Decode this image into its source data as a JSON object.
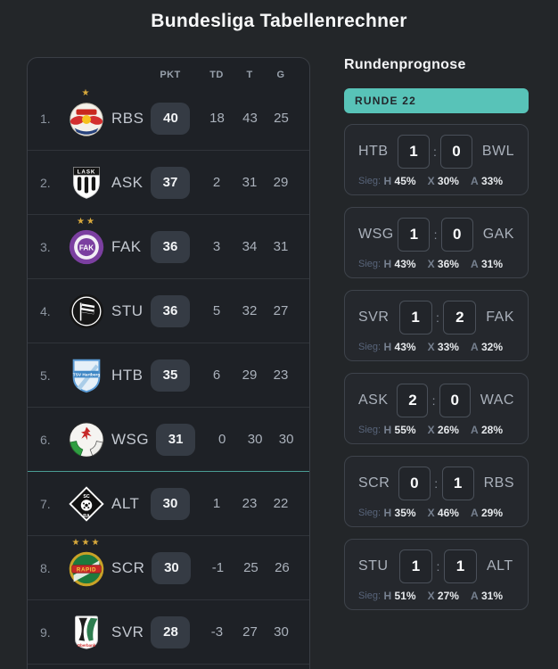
{
  "title": "Bundesliga Tabellenrechner",
  "colors": {
    "page_bg": "#232629",
    "panel_bg": "#1e2126",
    "card_bg": "#25282d",
    "accent_teal": "#58c3b8",
    "badge_bg": "#353b44",
    "star_gold": "#d8a93c"
  },
  "table": {
    "headers": [
      "PKT",
      "TD",
      "T",
      "G"
    ],
    "rows": [
      {
        "pos": "1.",
        "team": "RBS",
        "pkt": "40",
        "td": "18",
        "t": "43",
        "g": "25",
        "logo": "red-bull-salzburg-logo",
        "stars": 1,
        "divider_after": "normal"
      },
      {
        "pos": "2.",
        "team": "ASK",
        "pkt": "37",
        "td": "2",
        "t": "31",
        "g": "29",
        "logo": "lask-logo",
        "stars": 0,
        "divider_after": "normal"
      },
      {
        "pos": "3.",
        "team": "FAK",
        "pkt": "36",
        "td": "3",
        "t": "34",
        "g": "31",
        "logo": "austria-wien-logo",
        "stars": 2,
        "divider_after": "normal"
      },
      {
        "pos": "4.",
        "team": "STU",
        "pkt": "36",
        "td": "5",
        "t": "32",
        "g": "27",
        "logo": "sturm-graz-logo",
        "stars": 0,
        "divider_after": "normal"
      },
      {
        "pos": "5.",
        "team": "HTB",
        "pkt": "35",
        "td": "6",
        "t": "29",
        "g": "23",
        "logo": "hartberg-logo",
        "stars": 0,
        "divider_after": "normal"
      },
      {
        "pos": "6.",
        "team": "WSG",
        "pkt": "31",
        "td": "0",
        "t": "30",
        "g": "30",
        "logo": "wsg-tirol-logo",
        "stars": 0,
        "divider_after": "accent"
      },
      {
        "pos": "7.",
        "team": "ALT",
        "pkt": "30",
        "td": "1",
        "t": "23",
        "g": "22",
        "logo": "altach-logo",
        "stars": 0,
        "divider_after": "normal"
      },
      {
        "pos": "8.",
        "team": "SCR",
        "pkt": "30",
        "td": "-1",
        "t": "25",
        "g": "26",
        "logo": "rapid-wien-logo",
        "stars": 3,
        "divider_after": "normal"
      },
      {
        "pos": "9.",
        "team": "SVR",
        "pkt": "28",
        "td": "-3",
        "t": "27",
        "g": "30",
        "logo": "sv-ried-logo",
        "stars": 0,
        "divider_after": "normal"
      }
    ]
  },
  "prognose": {
    "heading": "Rundenprognose",
    "round_label": "RUNDE 22",
    "sieg_label": "Sieg:",
    "matches": [
      {
        "home": "HTB",
        "away": "BWL",
        "home_score": "1",
        "away_score": "0",
        "probs": [
          {
            "k": "H",
            "v": "45%"
          },
          {
            "k": "X",
            "v": "30%"
          },
          {
            "k": "A",
            "v": "33%"
          }
        ]
      },
      {
        "home": "WSG",
        "away": "GAK",
        "home_score": "1",
        "away_score": "0",
        "probs": [
          {
            "k": "H",
            "v": "43%"
          },
          {
            "k": "X",
            "v": "36%"
          },
          {
            "k": "A",
            "v": "31%"
          }
        ]
      },
      {
        "home": "SVR",
        "away": "FAK",
        "home_score": "1",
        "away_score": "2",
        "probs": [
          {
            "k": "H",
            "v": "43%"
          },
          {
            "k": "X",
            "v": "33%"
          },
          {
            "k": "A",
            "v": "32%"
          }
        ]
      },
      {
        "home": "ASK",
        "away": "WAC",
        "home_score": "2",
        "away_score": "0",
        "probs": [
          {
            "k": "H",
            "v": "55%"
          },
          {
            "k": "X",
            "v": "26%"
          },
          {
            "k": "A",
            "v": "28%"
          }
        ]
      },
      {
        "home": "SCR",
        "away": "RBS",
        "home_score": "0",
        "away_score": "1",
        "probs": [
          {
            "k": "H",
            "v": "35%"
          },
          {
            "k": "X",
            "v": "46%"
          },
          {
            "k": "A",
            "v": "29%"
          }
        ]
      },
      {
        "home": "STU",
        "away": "ALT",
        "home_score": "1",
        "away_score": "1",
        "probs": [
          {
            "k": "H",
            "v": "51%"
          },
          {
            "k": "X",
            "v": "27%"
          },
          {
            "k": "A",
            "v": "31%"
          }
        ]
      }
    ]
  }
}
